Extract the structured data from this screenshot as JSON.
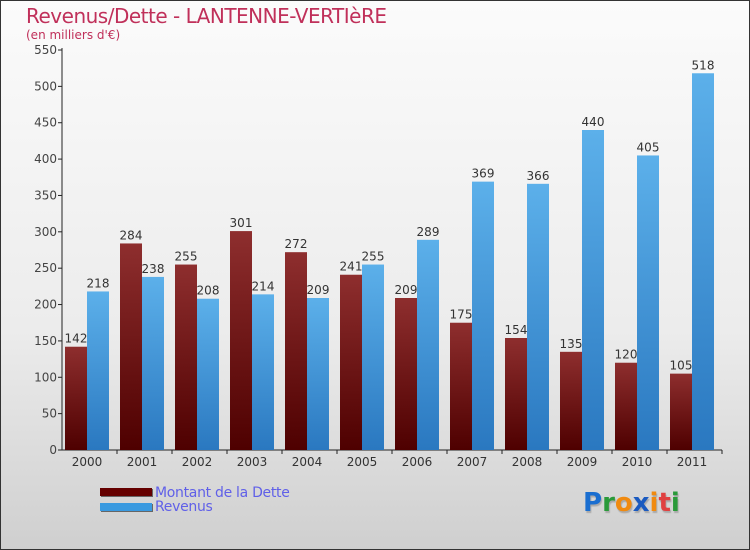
{
  "chart_data": {
    "type": "bar",
    "title": "Revenus/Dette - LANTENNE-VERTIèRE",
    "subtitle": "(en milliers d'€)",
    "categories": [
      "2000",
      "2001",
      "2002",
      "2003",
      "2004",
      "2005",
      "2006",
      "2007",
      "2008",
      "2009",
      "2010",
      "2011"
    ],
    "series": [
      {
        "name": "Montant de la Dette",
        "color": "#7a1a1a",
        "values": [
          142,
          284,
          255,
          301,
          272,
          241,
          209,
          175,
          154,
          135,
          120,
          105
        ]
      },
      {
        "name": "Revenus",
        "color": "#3a9ae0",
        "values": [
          218,
          238,
          208,
          214,
          209,
          255,
          289,
          369,
          366,
          440,
          405,
          518
        ]
      }
    ],
    "ylim": [
      0,
      550
    ],
    "yticks": [
      0,
      50,
      100,
      150,
      200,
      250,
      300,
      350,
      400,
      450,
      500,
      550
    ],
    "legend": "bottom-left",
    "grid": false
  },
  "logo": {
    "text": "Proxiti"
  }
}
